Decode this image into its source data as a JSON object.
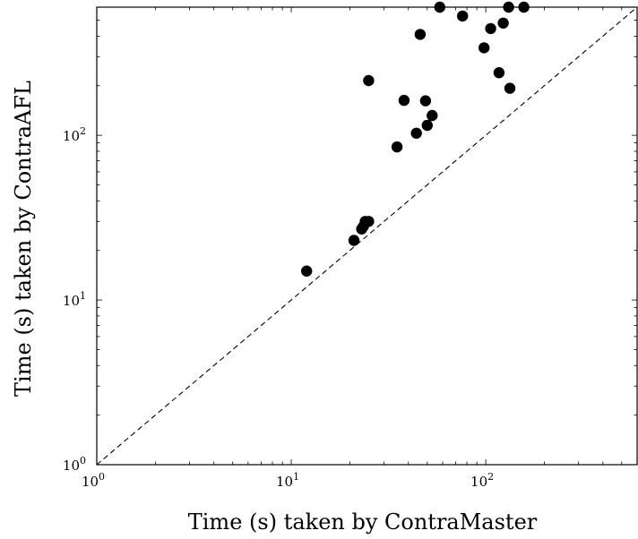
{
  "chart_data": {
    "type": "scatter",
    "title": "",
    "xlabel": "Time (s) taken by ContraMaster",
    "ylabel": "Time (s) taken by ContraAFL",
    "xscale": "log",
    "yscale": "log",
    "xlim": [
      1,
      600
    ],
    "ylim": [
      1,
      600
    ],
    "grid": false,
    "reference_line": "y = x (dashed)",
    "x_ticks": [
      {
        "value": 1,
        "base": "10",
        "exp": "0"
      },
      {
        "value": 10,
        "base": "10",
        "exp": "1"
      },
      {
        "value": 100,
        "base": "10",
        "exp": "2"
      }
    ],
    "y_ticks": [
      {
        "value": 1,
        "base": "10",
        "exp": "0"
      },
      {
        "value": 10,
        "base": "10",
        "exp": "1"
      },
      {
        "value": 100,
        "base": "10",
        "exp": "2"
      }
    ],
    "series": [
      {
        "color": "#000000",
        "points": [
          {
            "x": 12,
            "y": 15
          },
          {
            "x": 21,
            "y": 23
          },
          {
            "x": 23,
            "y": 27
          },
          {
            "x": 23.5,
            "y": 28
          },
          {
            "x": 24,
            "y": 30
          },
          {
            "x": 25,
            "y": 30
          },
          {
            "x": 25,
            "y": 215
          },
          {
            "x": 35,
            "y": 85
          },
          {
            "x": 38,
            "y": 163
          },
          {
            "x": 44,
            "y": 103
          },
          {
            "x": 46,
            "y": 410
          },
          {
            "x": 49,
            "y": 162
          },
          {
            "x": 50,
            "y": 115
          },
          {
            "x": 53,
            "y": 132
          },
          {
            "x": 58,
            "y": 600
          },
          {
            "x": 76,
            "y": 530
          },
          {
            "x": 98,
            "y": 340
          },
          {
            "x": 106,
            "y": 445
          },
          {
            "x": 117,
            "y": 240
          },
          {
            "x": 123,
            "y": 480
          },
          {
            "x": 131,
            "y": 600
          },
          {
            "x": 133,
            "y": 193
          },
          {
            "x": 157,
            "y": 600
          }
        ]
      }
    ]
  }
}
